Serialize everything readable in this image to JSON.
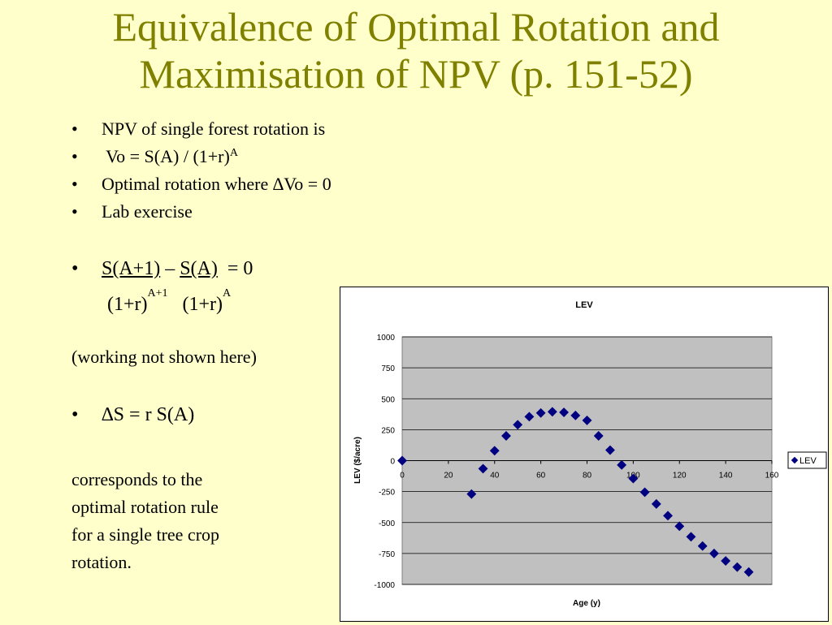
{
  "slide": {
    "title_line1": "Equivalence of Optimal Rotation and",
    "title_line2": "Maximisation of NPV (p. 151-52)",
    "bullet_char": "•",
    "bullets": [
      "NPV of single forest rotation is",
      " Vo = S(A) / (1+r)",
      "Optimal rotation where ∆Vo = 0",
      "Lab exercise"
    ],
    "bullet2_sup": "A",
    "equation": {
      "num1": "S(A+1)",
      "minus": " – ",
      "num2": "S(A)",
      "equals": "  = 0",
      "den1": "(1+r)",
      "den1_sup": "A+1",
      "den2": "(1+r)",
      "den2_sup": "A"
    },
    "working_note": "(working not shown here)",
    "delta_rule": "∆S = r S(A)",
    "conclusion": [
      "corresponds to the",
      "optimal rotation rule",
      "for a single tree crop",
      "rotation."
    ]
  },
  "chart_data": {
    "type": "scatter",
    "title": "LEV",
    "xlabel": "Age (y)",
    "ylabel": "LEV ($/acre)",
    "xlim": [
      0,
      160
    ],
    "ylim": [
      -1000,
      1000
    ],
    "xticks": [
      0,
      20,
      40,
      60,
      80,
      100,
      120,
      140,
      160
    ],
    "yticks": [
      1000,
      750,
      500,
      250,
      0,
      -250,
      -500,
      -750,
      -1000
    ],
    "grid": "horizontal",
    "legend": "right",
    "colors": {
      "marker": "#000080",
      "plot_bg": "#c0c0c0"
    },
    "series": [
      {
        "name": "LEV",
        "x": [
          0,
          30,
          35,
          40,
          45,
          50,
          55,
          60,
          65,
          70,
          75,
          80,
          85,
          90,
          95,
          100,
          105,
          110,
          115,
          120,
          125,
          130,
          135,
          140,
          145,
          150
        ],
        "y": [
          0,
          -270,
          -65,
          80,
          200,
          290,
          355,
          385,
          395,
          390,
          365,
          325,
          200,
          85,
          -35,
          -145,
          -255,
          -350,
          -445,
          -530,
          -615,
          -690,
          -750,
          -810,
          -860,
          -900
        ]
      }
    ]
  }
}
